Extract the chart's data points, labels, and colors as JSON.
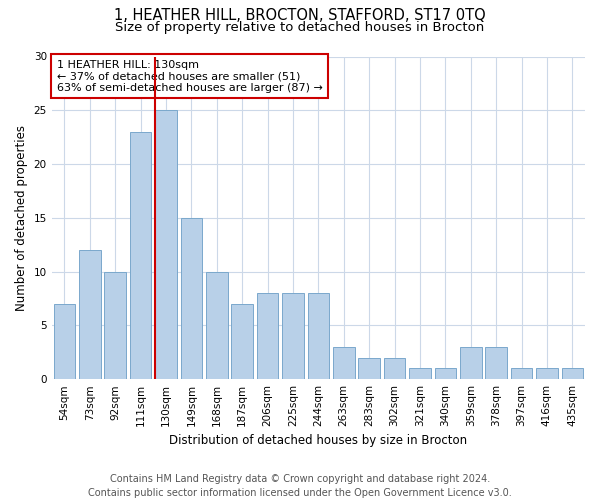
{
  "title": "1, HEATHER HILL, BROCTON, STAFFORD, ST17 0TQ",
  "subtitle": "Size of property relative to detached houses in Brocton",
  "xlabel": "Distribution of detached houses by size in Brocton",
  "ylabel": "Number of detached properties",
  "categories": [
    "54sqm",
    "73sqm",
    "92sqm",
    "111sqm",
    "130sqm",
    "149sqm",
    "168sqm",
    "187sqm",
    "206sqm",
    "225sqm",
    "244sqm",
    "263sqm",
    "283sqm",
    "302sqm",
    "321sqm",
    "340sqm",
    "359sqm",
    "378sqm",
    "397sqm",
    "416sqm",
    "435sqm"
  ],
  "values": [
    7,
    12,
    10,
    23,
    25,
    15,
    10,
    7,
    8,
    8,
    8,
    3,
    2,
    2,
    1,
    1,
    3,
    3,
    1,
    1,
    1
  ],
  "bar_color": "#b8d0e8",
  "bar_edgecolor": "#7aa8cc",
  "marker_index": 4,
  "marker_line_color": "#cc0000",
  "annotation_line1": "1 HEATHER HILL: 130sqm",
  "annotation_line2": "← 37% of detached houses are smaller (51)",
  "annotation_line3": "63% of semi-detached houses are larger (87) →",
  "annotation_box_edgecolor": "#cc0000",
  "footer_line1": "Contains HM Land Registry data © Crown copyright and database right 2024.",
  "footer_line2": "Contains public sector information licensed under the Open Government Licence v3.0.",
  "ylim": [
    0,
    30
  ],
  "yticks": [
    0,
    5,
    10,
    15,
    20,
    25,
    30
  ],
  "background_color": "#ffffff",
  "grid_color": "#ccd8e8",
  "title_fontsize": 10.5,
  "subtitle_fontsize": 9.5,
  "axis_label_fontsize": 8.5,
  "tick_fontsize": 7.5,
  "footer_fontsize": 7,
  "annotation_fontsize": 8
}
